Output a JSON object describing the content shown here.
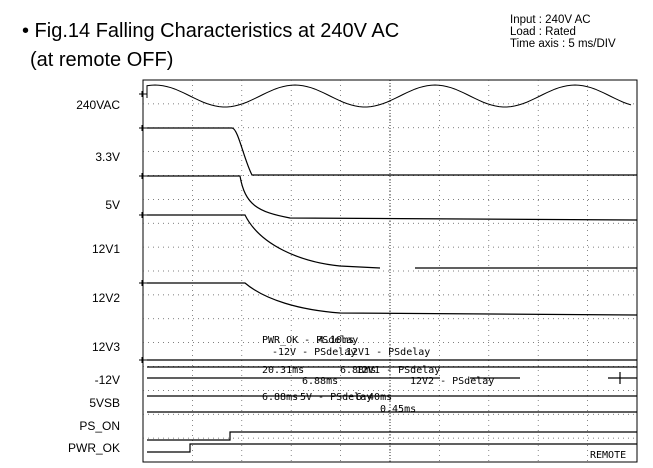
{
  "header": {
    "title": "• Fig.14  Falling Characteristics at 240V AC",
    "subtitle": "(at remote OFF)"
  },
  "info": [
    "Input : 240V AC",
    "Load : Rated",
    "Time axis : 5 ms/DIV"
  ],
  "channels": [
    "240VAC",
    "3.3V",
    "5V",
    "12V1",
    "12V2",
    "12V3",
    "-12V",
    "5VSB",
    "PS_ON",
    "PWR_OK"
  ],
  "measurements": [
    "PWR_OK - PSdelay",
    "4.10ms",
    "12V1 - PSdelay",
    "6.88ms",
    "-12V - PSdelay",
    "20.31ms",
    "12V1 - PSdelay",
    "6.88ms",
    "12V2 - PSdelay",
    "6.88ms",
    "5V - PSdelay",
    "6.40ms",
    "0.45ms"
  ],
  "footer": "REMOTE"
}
